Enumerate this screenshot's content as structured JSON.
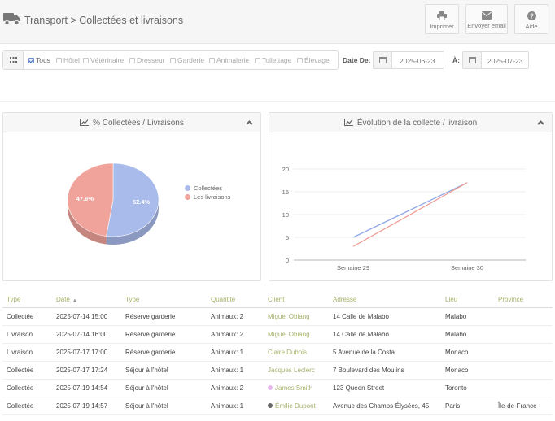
{
  "header": {
    "title": "Transport > Collectées et livraisons",
    "buttons": [
      {
        "label": "Imprimer",
        "icon": "print-icon"
      },
      {
        "label": "Envoyer email",
        "icon": "envelope-icon"
      },
      {
        "label": "Aide",
        "icon": "help-icon"
      }
    ]
  },
  "filters": {
    "categories": [
      {
        "label": "Tous",
        "checked": true
      },
      {
        "label": "Hôtel",
        "checked": false
      },
      {
        "label": "Vétérinaire",
        "checked": false
      },
      {
        "label": "Dresseur",
        "checked": false
      },
      {
        "label": "Garderie",
        "checked": false
      },
      {
        "label": "Animalerie",
        "checked": false
      },
      {
        "label": "Toilettage",
        "checked": false
      },
      {
        "label": "Élevage",
        "checked": false
      }
    ],
    "date_from_label": "Date De:",
    "date_from": "2025-06-23",
    "date_to_label": "À:",
    "date_to": "2025-07-23"
  },
  "pie_panel": {
    "title": "% Collectées / Livraisons"
  },
  "line_panel": {
    "title": "Évolution de la collecte / livraison"
  },
  "chart_data": [
    {
      "type": "pie",
      "title": "% Collectées / Livraisons",
      "slices": [
        {
          "label": "Collectées",
          "value": 52.4,
          "display": "52.4%",
          "color": "#a9bbea"
        },
        {
          "label": "Les livraisons",
          "value": 47.6,
          "display": "47.6%",
          "color": "#f0a39b"
        }
      ],
      "legend_position": "right",
      "style": "3d"
    },
    {
      "type": "line",
      "title": "Évolution de la collecte / livraison",
      "categories": [
        "Semaine 29",
        "Semaine 30"
      ],
      "yticks": [
        "0",
        "5",
        "10",
        "15",
        "20"
      ],
      "ylim": [
        0,
        20
      ],
      "grid": true,
      "series": [
        {
          "values": [
            5,
            17
          ],
          "color": "#8fa8e8"
        },
        {
          "values": [
            3,
            17
          ],
          "color": "#ef9f97"
        }
      ]
    }
  ],
  "table": {
    "columns": [
      "Type",
      "Date",
      "Type",
      "Quantité",
      "Client",
      "Adresse",
      "Lieu",
      "Province"
    ],
    "rows": [
      {
        "type": "Collectée",
        "date": "2025-07-14 15:00",
        "service": "Réserve garderie",
        "quantity": "Animaux: 2",
        "client": "Miguel Obiang",
        "client_dot": "",
        "address": "14 Calle de Malabo",
        "city": "Malabo",
        "province": ""
      },
      {
        "type": "Livraison",
        "date": "2025-07-14 16:00",
        "service": "Réserve garderie",
        "quantity": "Animaux: 2",
        "client": "Miguel Obiang",
        "client_dot": "",
        "address": "14 Calle de Malabo",
        "city": "Malabo",
        "province": ""
      },
      {
        "type": "Livraison",
        "date": "2025-07-17 17:00",
        "service": "Réserve garderie",
        "quantity": "Animaux: 1",
        "client": "Claire Dubois",
        "client_dot": "",
        "address": "5 Avenue de la Costa",
        "city": "Monaco",
        "province": ""
      },
      {
        "type": "Collectée",
        "date": "2025-07-17 17:24",
        "service": "Séjour à l'hôtel",
        "quantity": "Animaux: 1",
        "client": "Jacques Leclerc",
        "client_dot": "",
        "address": "7 Boulevard des Moulins",
        "city": "Monaco",
        "province": ""
      },
      {
        "type": "Collectée",
        "date": "2025-07-19 14:54",
        "service": "Séjour à l'hôtel",
        "quantity": "Animaux: 2",
        "client": "James Smith",
        "client_dot": "#e4b8ea",
        "address": "123 Queen Street",
        "city": "Toronto",
        "province": ""
      },
      {
        "type": "Collectée",
        "date": "2025-07-19 14:57",
        "service": "Séjour à l'hôtel",
        "quantity": "Animaux: 1",
        "client": "Émilie Dupont",
        "client_dot": "#666666",
        "address": "Avenue des Champs-Élysées, 45",
        "city": "Paris",
        "province": "Île-de-France"
      }
    ]
  }
}
